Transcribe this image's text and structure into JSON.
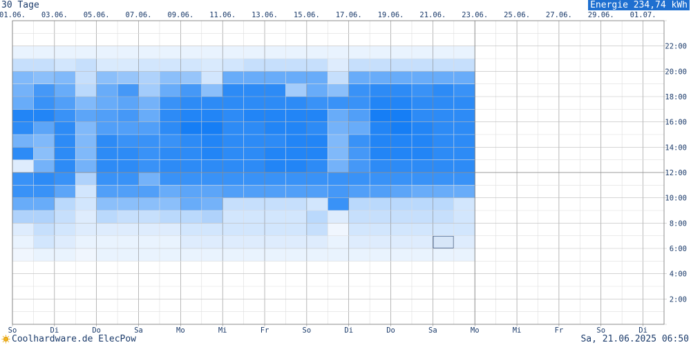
{
  "header": {
    "title": "30 Tage",
    "energy_label": "Energie 234,74 kWh"
  },
  "footer": {
    "brand": "Coolhardware.de ElecPow",
    "brand_icon": "sun-icon",
    "timestamp": "Sa, 21.06.2025 06:50"
  },
  "chart_data": {
    "type": "heatmap",
    "top_tick_labels": [
      "01.06.",
      "03.06.",
      "05.06.",
      "07.06.",
      "09.06.",
      "11.06.",
      "13.06.",
      "15.06.",
      "17.06.",
      "19.06.",
      "21.06.",
      "23.06.",
      "25.06.",
      "27.06.",
      "29.06.",
      "01.07."
    ],
    "bottom_tick_labels": [
      "So",
      "Di",
      "Do",
      "Sa",
      "Mo",
      "Mi",
      "Fr",
      "So",
      "Di",
      "Do",
      "Sa",
      "Mo",
      "Mi",
      "Fr",
      "So",
      "Di"
    ],
    "y_tick_labels": [
      "2:00",
      "4:00",
      "6:00",
      "8:00",
      "10:00",
      "12:00",
      "14:00",
      "16:00",
      "18:00",
      "20:00",
      "22:00"
    ],
    "ylim": [
      0,
      24
    ],
    "days": 31,
    "slot_hours": 1,
    "intensity_grid_hours_from_22_down_to_5": [
      [
        0.05,
        0.05,
        0.05,
        0.05,
        0.05,
        0.05,
        0.05,
        0.05,
        0.05,
        0.05,
        0.05,
        0.05,
        0.05,
        0.05,
        0.05,
        0.05,
        0.05,
        0.05,
        0.05,
        0.05,
        0.05,
        0.05
      ],
      [
        0.2,
        0.2,
        0.15,
        0.2,
        0.12,
        0.12,
        0.15,
        0.15,
        0.15,
        0.12,
        0.15,
        0.2,
        0.2,
        0.2,
        0.2,
        0.1,
        0.2,
        0.2,
        0.2,
        0.2,
        0.2,
        0.2
      ],
      [
        0.5,
        0.45,
        0.5,
        0.2,
        0.45,
        0.4,
        0.3,
        0.45,
        0.4,
        0.15,
        0.6,
        0.6,
        0.6,
        0.6,
        0.6,
        0.2,
        0.6,
        0.6,
        0.6,
        0.6,
        0.6,
        0.6
      ],
      [
        0.55,
        0.75,
        0.6,
        0.25,
        0.6,
        0.75,
        0.35,
        0.6,
        0.75,
        0.45,
        0.85,
        0.85,
        0.85,
        0.35,
        0.6,
        0.45,
        0.8,
        0.85,
        0.85,
        0.8,
        0.85,
        0.8
      ],
      [
        0.6,
        0.8,
        0.7,
        0.5,
        0.6,
        0.65,
        0.55,
        0.8,
        0.85,
        0.85,
        0.85,
        0.85,
        0.85,
        0.85,
        0.8,
        0.8,
        0.8,
        0.9,
        0.9,
        0.85,
        0.85,
        0.85
      ],
      [
        0.9,
        0.9,
        0.8,
        0.65,
        0.7,
        0.75,
        0.6,
        0.85,
        0.9,
        0.9,
        0.85,
        0.9,
        0.9,
        0.9,
        0.9,
        0.6,
        0.7,
        0.95,
        0.95,
        0.85,
        0.85,
        0.85
      ],
      [
        0.85,
        0.65,
        0.85,
        0.5,
        0.7,
        0.7,
        0.7,
        0.85,
        0.95,
        0.95,
        0.85,
        0.85,
        0.9,
        0.9,
        0.85,
        0.55,
        0.6,
        0.9,
        0.95,
        0.9,
        0.85,
        0.85
      ],
      [
        0.55,
        0.5,
        0.85,
        0.5,
        0.85,
        0.8,
        0.8,
        0.8,
        0.85,
        0.9,
        0.85,
        0.85,
        0.85,
        0.9,
        0.9,
        0.5,
        0.8,
        0.9,
        0.9,
        0.9,
        0.85,
        0.85
      ],
      [
        0.85,
        0.45,
        0.85,
        0.5,
        0.85,
        0.85,
        0.8,
        0.85,
        0.85,
        0.9,
        0.85,
        0.85,
        0.9,
        0.9,
        0.9,
        0.5,
        0.75,
        0.9,
        0.9,
        0.9,
        0.85,
        0.85
      ],
      [
        0.1,
        0.55,
        0.85,
        0.55,
        0.85,
        0.85,
        0.8,
        0.85,
        0.85,
        0.85,
        0.85,
        0.85,
        0.9,
        0.9,
        0.85,
        0.55,
        0.75,
        0.85,
        0.85,
        0.85,
        0.85,
        0.85
      ],
      [
        0.8,
        0.85,
        0.8,
        0.3,
        0.8,
        0.8,
        0.55,
        0.8,
        0.8,
        0.8,
        0.8,
        0.8,
        0.8,
        0.8,
        0.8,
        0.8,
        0.8,
        0.8,
        0.8,
        0.8,
        0.8,
        0.8
      ],
      [
        0.8,
        0.8,
        0.65,
        0.15,
        0.7,
        0.7,
        0.7,
        0.6,
        0.65,
        0.65,
        0.7,
        0.7,
        0.7,
        0.7,
        0.7,
        0.75,
        0.7,
        0.7,
        0.65,
        0.6,
        0.6,
        0.6
      ],
      [
        0.6,
        0.6,
        0.25,
        0.15,
        0.45,
        0.45,
        0.45,
        0.45,
        0.6,
        0.55,
        0.2,
        0.2,
        0.2,
        0.2,
        0.15,
        0.8,
        0.25,
        0.25,
        0.25,
        0.25,
        0.25,
        0.15
      ],
      [
        0.3,
        0.3,
        0.2,
        0.1,
        0.25,
        0.2,
        0.2,
        0.25,
        0.25,
        0.3,
        0.15,
        0.15,
        0.15,
        0.15,
        0.25,
        0.1,
        0.2,
        0.2,
        0.2,
        0.2,
        0.2,
        0.15
      ],
      [
        0.1,
        0.2,
        0.15,
        0.1,
        0.1,
        0.1,
        0.1,
        0.1,
        0.15,
        0.15,
        0.15,
        0.15,
        0.15,
        0.15,
        0.2,
        0.02,
        0.15,
        0.15,
        0.15,
        0.15,
        0.15,
        0.15
      ],
      [
        0.05,
        0.15,
        0.1,
        0.05,
        0.05,
        0.05,
        0.05,
        0.05,
        0.1,
        0.1,
        0.1,
        0.1,
        0.1,
        0.1,
        0.1,
        0.05,
        0.1,
        0.1,
        0.1,
        0.1,
        0.1,
        0.1
      ],
      [
        0.02,
        0.05,
        0.05,
        0.02,
        0.05,
        0.05,
        0.05,
        0.05,
        0.05,
        0.05,
        0.05,
        0.05,
        0.05,
        0.05,
        0.05,
        0.05,
        0.05,
        0.05,
        0.05,
        0.05,
        0.05,
        0.05
      ]
    ],
    "current_cell": {
      "day_index": 20,
      "hour": 6
    },
    "colors": {
      "high": "#0a78f5",
      "low": "#f5f9fe",
      "grid_major": "#888888",
      "grid_minor": "#dddddd",
      "current_cell_fill": "#d7e6f8",
      "current_cell_border": "#3a5a8a"
    }
  }
}
